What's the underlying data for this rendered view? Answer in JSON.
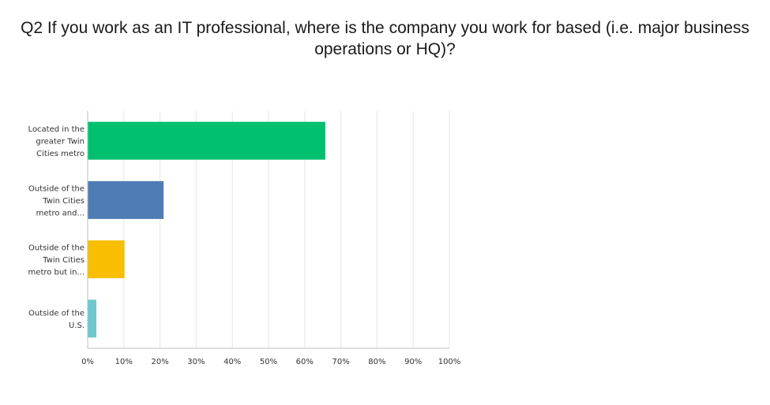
{
  "chart_data": {
    "type": "bar",
    "orientation": "horizontal",
    "title": "Q2 If you work as an IT professional, where is the company you work for based (i.e. major business operations or HQ)?",
    "categories": [
      [
        "Located in the",
        "greater Twin",
        "Cities metro"
      ],
      [
        "Outside of the",
        "Twin Cities",
        "metro and..."
      ],
      [
        "Outside of the",
        "Twin Cities",
        "metro but in..."
      ],
      [
        "Outside of the",
        "U.S."
      ]
    ],
    "values": [
      65.7,
      21.0,
      10.2,
      2.4
    ],
    "colors": [
      "#00bf6f",
      "#507cb6",
      "#f9be00",
      "#6bc8cd"
    ],
    "xlim": [
      0,
      100
    ],
    "x_ticks": [
      "0%",
      "10%",
      "20%",
      "30%",
      "40%",
      "50%",
      "60%",
      "70%",
      "80%",
      "90%",
      "100%"
    ],
    "grid": true
  }
}
